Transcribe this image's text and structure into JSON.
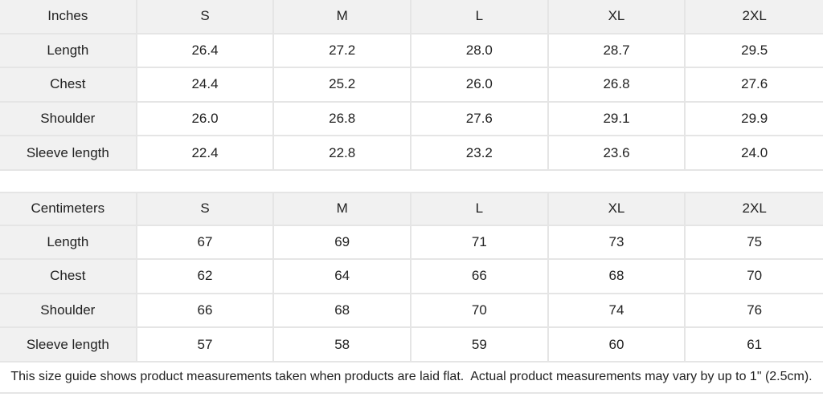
{
  "colors": {
    "header_bg": "#f1f1f1",
    "label_bg": "#f1f1f1",
    "cell_bg": "#ffffff",
    "border": "#e5e5e5",
    "text": "#222222"
  },
  "tables": [
    {
      "unit_label": "Inches",
      "sizes": [
        "S",
        "M",
        "L",
        "XL",
        "2XL"
      ],
      "rows": [
        {
          "label": "Length",
          "values": [
            "26.4",
            "27.2",
            "28.0",
            "28.7",
            "29.5"
          ]
        },
        {
          "label": "Chest",
          "values": [
            "24.4",
            "25.2",
            "26.0",
            "26.8",
            "27.6"
          ]
        },
        {
          "label": "Shoulder",
          "values": [
            "26.0",
            "26.8",
            "27.6",
            "29.1",
            "29.9"
          ]
        },
        {
          "label": "Sleeve length",
          "values": [
            "22.4",
            "22.8",
            "23.2",
            "23.6",
            "24.0"
          ]
        }
      ]
    },
    {
      "unit_label": "Centimeters",
      "sizes": [
        "S",
        "M",
        "L",
        "XL",
        "2XL"
      ],
      "rows": [
        {
          "label": "Length",
          "values": [
            "67",
            "69",
            "71",
            "73",
            "75"
          ]
        },
        {
          "label": "Chest",
          "values": [
            "62",
            "64",
            "66",
            "68",
            "70"
          ]
        },
        {
          "label": "Shoulder",
          "values": [
            "66",
            "68",
            "70",
            "74",
            "76"
          ]
        },
        {
          "label": "Sleeve length",
          "values": [
            "57",
            "58",
            "59",
            "60",
            "61"
          ]
        }
      ]
    }
  ],
  "footnote": "This size guide shows product measurements taken when products are laid flat.  Actual product measurements may vary by up to 1\" (2.5cm)."
}
